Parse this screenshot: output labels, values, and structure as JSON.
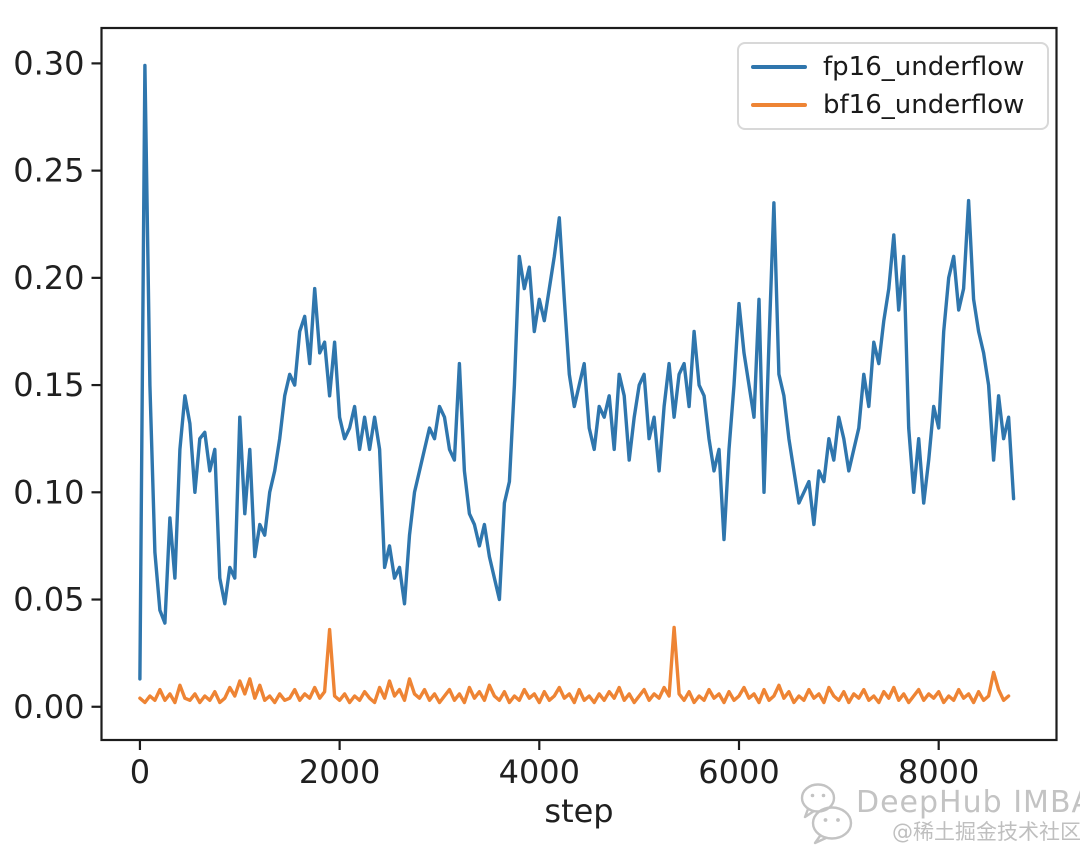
{
  "chart_data": {
    "type": "line",
    "xlabel": "step",
    "ylabel": "",
    "grid": false,
    "legend_position": "upper right",
    "xlim": [
      -385,
      9180
    ],
    "ylim": [
      -0.0155,
      0.3165
    ],
    "xticks": [
      {
        "value": 0,
        "label": "0"
      },
      {
        "value": 2000,
        "label": "2000"
      },
      {
        "value": 4000,
        "label": "4000"
      },
      {
        "value": 6000,
        "label": "6000"
      },
      {
        "value": 8000,
        "label": "8000"
      }
    ],
    "yticks": [
      {
        "value": 0.0,
        "label": "0.00"
      },
      {
        "value": 0.05,
        "label": "0.05"
      },
      {
        "value": 0.1,
        "label": "0.10"
      },
      {
        "value": 0.15,
        "label": "0.15"
      },
      {
        "value": 0.2,
        "label": "0.20"
      },
      {
        "value": 0.25,
        "label": "0.25"
      },
      {
        "value": 0.3,
        "label": "0.30"
      }
    ],
    "frame_color": "#1c1c1c",
    "tick_label_color": "#202020",
    "x_start": 0,
    "x_interval": 50,
    "series": [
      {
        "name": "fp16_underflow",
        "color": "#2f76ad",
        "values": [
          0.013,
          0.299,
          0.15,
          0.072,
          0.045,
          0.039,
          0.088,
          0.06,
          0.12,
          0.145,
          0.132,
          0.1,
          0.125,
          0.128,
          0.11,
          0.12,
          0.06,
          0.048,
          0.065,
          0.06,
          0.135,
          0.09,
          0.12,
          0.07,
          0.085,
          0.08,
          0.1,
          0.11,
          0.125,
          0.145,
          0.155,
          0.15,
          0.175,
          0.182,
          0.16,
          0.195,
          0.165,
          0.17,
          0.145,
          0.17,
          0.135,
          0.125,
          0.13,
          0.14,
          0.12,
          0.135,
          0.12,
          0.135,
          0.12,
          0.065,
          0.075,
          0.06,
          0.065,
          0.048,
          0.08,
          0.1,
          0.11,
          0.12,
          0.13,
          0.125,
          0.14,
          0.135,
          0.12,
          0.115,
          0.16,
          0.11,
          0.09,
          0.085,
          0.075,
          0.085,
          0.07,
          0.06,
          0.05,
          0.095,
          0.105,
          0.15,
          0.21,
          0.195,
          0.205,
          0.175,
          0.19,
          0.18,
          0.195,
          0.21,
          0.228,
          0.19,
          0.155,
          0.14,
          0.15,
          0.16,
          0.13,
          0.12,
          0.14,
          0.135,
          0.145,
          0.12,
          0.155,
          0.145,
          0.115,
          0.135,
          0.15,
          0.155,
          0.125,
          0.135,
          0.11,
          0.14,
          0.16,
          0.135,
          0.155,
          0.16,
          0.14,
          0.175,
          0.15,
          0.145,
          0.125,
          0.11,
          0.12,
          0.078,
          0.12,
          0.15,
          0.188,
          0.165,
          0.15,
          0.135,
          0.19,
          0.1,
          0.17,
          0.235,
          0.155,
          0.145,
          0.125,
          0.11,
          0.095,
          0.1,
          0.105,
          0.085,
          0.11,
          0.105,
          0.125,
          0.115,
          0.135,
          0.125,
          0.11,
          0.12,
          0.13,
          0.155,
          0.14,
          0.17,
          0.16,
          0.18,
          0.195,
          0.22,
          0.185,
          0.21,
          0.13,
          0.1,
          0.125,
          0.095,
          0.115,
          0.14,
          0.13,
          0.175,
          0.2,
          0.21,
          0.185,
          0.195,
          0.236,
          0.19,
          0.175,
          0.165,
          0.15,
          0.115,
          0.145,
          0.125,
          0.135,
          0.097
        ]
      },
      {
        "name": "bf16_underflow",
        "color": "#ee8434",
        "values": [
          0.004,
          0.002,
          0.005,
          0.003,
          0.008,
          0.003,
          0.006,
          0.002,
          0.01,
          0.004,
          0.003,
          0.006,
          0.002,
          0.005,
          0.003,
          0.007,
          0.002,
          0.004,
          0.009,
          0.005,
          0.012,
          0.006,
          0.013,
          0.004,
          0.01,
          0.003,
          0.005,
          0.002,
          0.006,
          0.003,
          0.004,
          0.008,
          0.003,
          0.006,
          0.004,
          0.009,
          0.004,
          0.007,
          0.036,
          0.005,
          0.003,
          0.006,
          0.002,
          0.005,
          0.003,
          0.007,
          0.004,
          0.002,
          0.009,
          0.004,
          0.012,
          0.005,
          0.008,
          0.003,
          0.013,
          0.006,
          0.004,
          0.008,
          0.003,
          0.006,
          0.002,
          0.005,
          0.008,
          0.003,
          0.006,
          0.002,
          0.009,
          0.004,
          0.007,
          0.003,
          0.01,
          0.005,
          0.003,
          0.007,
          0.002,
          0.005,
          0.003,
          0.008,
          0.004,
          0.006,
          0.002,
          0.007,
          0.003,
          0.005,
          0.009,
          0.004,
          0.006,
          0.002,
          0.008,
          0.003,
          0.005,
          0.002,
          0.006,
          0.003,
          0.007,
          0.004,
          0.009,
          0.003,
          0.006,
          0.002,
          0.005,
          0.008,
          0.003,
          0.006,
          0.004,
          0.009,
          0.005,
          0.037,
          0.006,
          0.003,
          0.007,
          0.002,
          0.005,
          0.003,
          0.008,
          0.004,
          0.006,
          0.002,
          0.007,
          0.003,
          0.005,
          0.009,
          0.004,
          0.006,
          0.002,
          0.008,
          0.003,
          0.005,
          0.01,
          0.004,
          0.007,
          0.002,
          0.005,
          0.003,
          0.008,
          0.004,
          0.006,
          0.002,
          0.009,
          0.005,
          0.003,
          0.007,
          0.002,
          0.006,
          0.004,
          0.008,
          0.003,
          0.005,
          0.002,
          0.007,
          0.004,
          0.009,
          0.003,
          0.006,
          0.002,
          0.005,
          0.008,
          0.003,
          0.006,
          0.004,
          0.007,
          0.002,
          0.005,
          0.003,
          0.008,
          0.004,
          0.006,
          0.002,
          0.007,
          0.003,
          0.005,
          0.016,
          0.008,
          0.003,
          0.005
        ]
      }
    ]
  },
  "watermark": {
    "title": "DeepHub IMBA",
    "subtitle": "@稀土掘金技术社区",
    "icon": "wechat-icon"
  }
}
